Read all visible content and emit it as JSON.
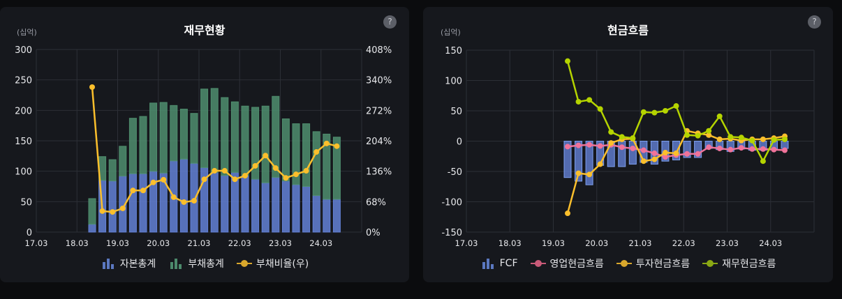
{
  "panels": [
    {
      "title": "재무현황",
      "unit_label": "(십억)",
      "help_label": "?",
      "legend": [
        {
          "label": "자본총계",
          "icon": "bar-icon",
          "color": "#5b78c0"
        },
        {
          "label": "부채총계",
          "icon": "bar-icon",
          "color": "#4c8a6c"
        },
        {
          "label": "부채비율(우)",
          "icon": "line-dot-icon",
          "color": "#d9a72c"
        }
      ]
    },
    {
      "title": "현금흐름",
      "unit_label": "(십억)",
      "help_label": "?",
      "legend": [
        {
          "label": "FCF",
          "icon": "bar-icon",
          "color": "#5b78c0"
        },
        {
          "label": "영업현금흐름",
          "icon": "line-dot-icon",
          "color": "#c95a78"
        },
        {
          "label": "투자현금흐름",
          "icon": "line-dot-icon",
          "color": "#d9a72c"
        },
        {
          "label": "재무현금흐름",
          "icon": "line-dot-icon",
          "color": "#8aa814"
        }
      ]
    }
  ],
  "chart_data": [
    {
      "type": "bar",
      "title": "재무현황",
      "ylabel": "(십억)",
      "xlabel": "",
      "x_tick_labels": [
        "17.03",
        "18.03",
        "19.03",
        "20.03",
        "21.03",
        "22.03",
        "23.03",
        "24.03"
      ],
      "ylim": [
        0,
        300
      ],
      "y_ticks": [
        0,
        50,
        100,
        150,
        200,
        250,
        300
      ],
      "y2lim": [
        0,
        408
      ],
      "y2_tick_labels": [
        "0%",
        "68%",
        "136%",
        "204%",
        "272%",
        "340%",
        "408%"
      ],
      "grid": true,
      "legend_position": "bottom",
      "stacked": true,
      "series": [
        {
          "name": "자본총계",
          "type": "bar",
          "color": "#6381d6",
          "values": [
            13,
            85,
            84,
            92,
            96,
            96,
            100,
            97,
            117,
            120,
            113,
            106,
            98,
            93,
            98,
            93,
            87,
            81,
            90,
            84,
            78,
            75,
            60,
            54,
            54
          ]
        },
        {
          "name": "부채총계",
          "type": "bar",
          "color": "#4f8e6e",
          "values": [
            42,
            39,
            35,
            49,
            91,
            94,
            112,
            116,
            91,
            82,
            82,
            129,
            138,
            128,
            116,
            114,
            118,
            126,
            133,
            102,
            100,
            103,
            105,
            107,
            102
          ]
        },
        {
          "name": "부채비율(우)",
          "type": "line",
          "axis": "right",
          "color": "#fbbf2c",
          "values": [
            324,
            47,
            45,
            53,
            93,
            93,
            111,
            117,
            78,
            67,
            70,
            118,
            137,
            137,
            118,
            126,
            148,
            171,
            143,
            121,
            129,
            137,
            179,
            198,
            192
          ]
        }
      ]
    },
    {
      "type": "bar",
      "title": "현금흐름",
      "ylabel": "(십억)",
      "xlabel": "",
      "x_tick_labels": [
        "17.03",
        "18.03",
        "19.03",
        "20.03",
        "21.03",
        "22.03",
        "23.03",
        "24.03"
      ],
      "ylim": [
        -150,
        150
      ],
      "y_ticks": [
        -150,
        -100,
        -50,
        0,
        50,
        100,
        150
      ],
      "grid": true,
      "legend_position": "bottom",
      "series": [
        {
          "name": "FCF",
          "type": "bar",
          "color": "#6381d6",
          "values": [
            -60,
            -66,
            -72,
            -40,
            -42,
            -42,
            -38,
            -35,
            -38,
            -33,
            -31,
            -27,
            -27,
            -12,
            -14,
            -17,
            -13,
            -15,
            -15,
            -13,
            -12
          ]
        },
        {
          "name": "영업현금흐름",
          "type": "line",
          "color": "#f0739a",
          "values": [
            -9,
            -7,
            -6,
            -8,
            -6,
            -10,
            -12,
            -15,
            -20,
            -26,
            -23,
            -21,
            -21,
            -10,
            -12,
            -14,
            -11,
            -13,
            -13,
            -14,
            -15
          ]
        },
        {
          "name": "투자현금흐름",
          "type": "line",
          "color": "#fbbf2c",
          "values": [
            -119,
            -53,
            -55,
            -38,
            -3,
            3,
            4,
            -33,
            -30,
            -19,
            -20,
            17,
            13,
            10,
            3,
            4,
            1,
            3,
            3,
            5,
            8
          ]
        },
        {
          "name": "재무현금흐름",
          "type": "line",
          "color": "#b5d400",
          "values": [
            132,
            65,
            68,
            53,
            15,
            7,
            5,
            48,
            47,
            50,
            58,
            10,
            9,
            17,
            41,
            7,
            6,
            1,
            -33,
            2,
            3
          ]
        }
      ]
    }
  ]
}
